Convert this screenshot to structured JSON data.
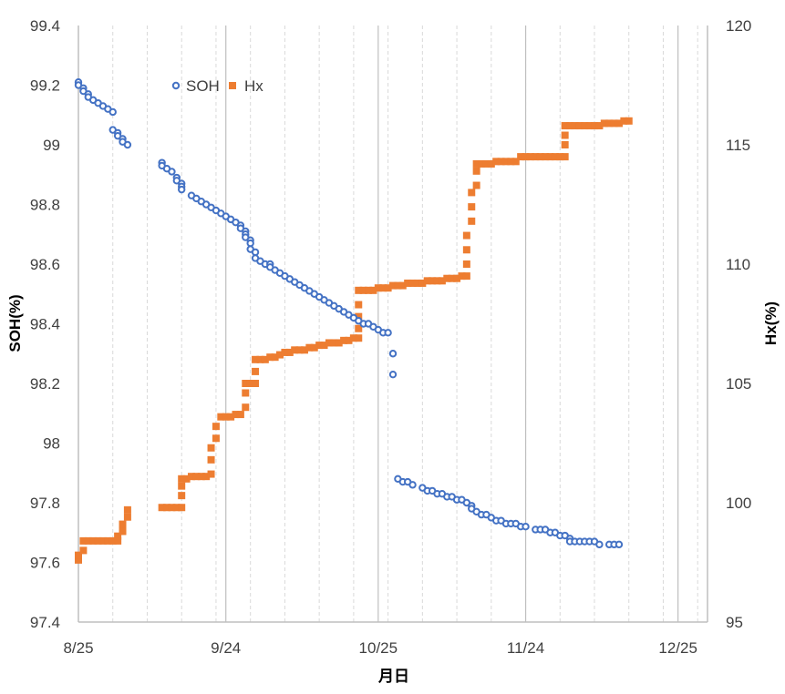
{
  "chart_data": {
    "type": "scatter",
    "x_axis": {
      "label": "月日",
      "ticks": [
        "8/25",
        "9/24",
        "10/25",
        "11/24",
        "12/25"
      ],
      "tick_dates": [
        "2023-08-25",
        "2023-09-24",
        "2023-10-25",
        "2023-11-24",
        "2023-12-25"
      ],
      "range": [
        "2023-08-25",
        "2023-12-31"
      ],
      "gridlines": "major solid, minor dashed weekly"
    },
    "y_axis_left": {
      "label": "SOH(%)",
      "ylim": [
        97.4,
        99.4
      ],
      "ticks": [
        "97.4",
        "97.6",
        "97.8",
        "98",
        "98.2",
        "98.4",
        "98.6",
        "98.8",
        "99",
        "99.2",
        "99.4"
      ]
    },
    "y_axis_right": {
      "label": "Hx(%)",
      "ylim": [
        95,
        120
      ],
      "ticks": [
        "95",
        "100",
        "105",
        "110",
        "115",
        "120"
      ]
    },
    "legend": {
      "position": "top-left",
      "entries": [
        "SOH",
        "Hx"
      ]
    },
    "series": [
      {
        "name": "SOH",
        "axis": "left",
        "marker": "hollow-circle",
        "color": "#4472C4",
        "points": [
          [
            "2023-08-25",
            99.21
          ],
          [
            "2023-08-25",
            99.2
          ],
          [
            "2023-08-26",
            99.19
          ],
          [
            "2023-08-26",
            99.18
          ],
          [
            "2023-08-27",
            99.17
          ],
          [
            "2023-08-27",
            99.16
          ],
          [
            "2023-08-28",
            99.15
          ],
          [
            "2023-08-29",
            99.14
          ],
          [
            "2023-08-30",
            99.13
          ],
          [
            "2023-08-31",
            99.12
          ],
          [
            "2023-09-01",
            99.11
          ],
          [
            "2023-09-01",
            99.05
          ],
          [
            "2023-09-02",
            99.04
          ],
          [
            "2023-09-02",
            99.03
          ],
          [
            "2023-09-03",
            99.02
          ],
          [
            "2023-09-03",
            99.01
          ],
          [
            "2023-09-04",
            99.0
          ],
          [
            "2023-09-11",
            98.94
          ],
          [
            "2023-09-11",
            98.93
          ],
          [
            "2023-09-12",
            98.92
          ],
          [
            "2023-09-13",
            98.91
          ],
          [
            "2023-09-14",
            98.89
          ],
          [
            "2023-09-14",
            98.88
          ],
          [
            "2023-09-15",
            98.87
          ],
          [
            "2023-09-15",
            98.86
          ],
          [
            "2023-09-15",
            98.85
          ],
          [
            "2023-09-17",
            98.83
          ],
          [
            "2023-09-18",
            98.82
          ],
          [
            "2023-09-19",
            98.81
          ],
          [
            "2023-09-20",
            98.8
          ],
          [
            "2023-09-21",
            98.79
          ],
          [
            "2023-09-22",
            98.78
          ],
          [
            "2023-09-23",
            98.77
          ],
          [
            "2023-09-24",
            98.76
          ],
          [
            "2023-09-25",
            98.75
          ],
          [
            "2023-09-26",
            98.74
          ],
          [
            "2023-09-27",
            98.73
          ],
          [
            "2023-09-27",
            98.72
          ],
          [
            "2023-09-28",
            98.71
          ],
          [
            "2023-09-28",
            98.7
          ],
          [
            "2023-09-28",
            98.69
          ],
          [
            "2023-09-29",
            98.68
          ],
          [
            "2023-09-29",
            98.67
          ],
          [
            "2023-09-29",
            98.65
          ],
          [
            "2023-09-30",
            98.64
          ],
          [
            "2023-09-30",
            98.62
          ],
          [
            "2023-10-01",
            98.61
          ],
          [
            "2023-10-02",
            98.6
          ],
          [
            "2023-10-03",
            98.6
          ],
          [
            "2023-10-03",
            98.59
          ],
          [
            "2023-10-04",
            98.58
          ],
          [
            "2023-10-05",
            98.57
          ],
          [
            "2023-10-06",
            98.56
          ],
          [
            "2023-10-07",
            98.55
          ],
          [
            "2023-10-08",
            98.54
          ],
          [
            "2023-10-09",
            98.53
          ],
          [
            "2023-10-10",
            98.52
          ],
          [
            "2023-10-11",
            98.51
          ],
          [
            "2023-10-12",
            98.5
          ],
          [
            "2023-10-13",
            98.49
          ],
          [
            "2023-10-14",
            98.48
          ],
          [
            "2023-10-15",
            98.47
          ],
          [
            "2023-10-16",
            98.46
          ],
          [
            "2023-10-17",
            98.45
          ],
          [
            "2023-10-18",
            98.44
          ],
          [
            "2023-10-19",
            98.43
          ],
          [
            "2023-10-20",
            98.42
          ],
          [
            "2023-10-21",
            98.41
          ],
          [
            "2023-10-22",
            98.4
          ],
          [
            "2023-10-23",
            98.4
          ],
          [
            "2023-10-24",
            98.39
          ],
          [
            "2023-10-25",
            98.38
          ],
          [
            "2023-10-26",
            98.37
          ],
          [
            "2023-10-27",
            98.37
          ],
          [
            "2023-10-28",
            98.3
          ],
          [
            "2023-10-28",
            98.23
          ],
          [
            "2023-10-29",
            97.88
          ],
          [
            "2023-10-30",
            97.87
          ],
          [
            "2023-10-31",
            97.87
          ],
          [
            "2023-11-01",
            97.86
          ],
          [
            "2023-11-03",
            97.85
          ],
          [
            "2023-11-04",
            97.84
          ],
          [
            "2023-11-05",
            97.84
          ],
          [
            "2023-11-06",
            97.83
          ],
          [
            "2023-11-07",
            97.83
          ],
          [
            "2023-11-08",
            97.82
          ],
          [
            "2023-11-09",
            97.82
          ],
          [
            "2023-11-10",
            97.81
          ],
          [
            "2023-11-11",
            97.81
          ],
          [
            "2023-11-12",
            97.8
          ],
          [
            "2023-11-13",
            97.79
          ],
          [
            "2023-11-13",
            97.78
          ],
          [
            "2023-11-14",
            97.77
          ],
          [
            "2023-11-15",
            97.76
          ],
          [
            "2023-11-16",
            97.76
          ],
          [
            "2023-11-17",
            97.75
          ],
          [
            "2023-11-18",
            97.74
          ],
          [
            "2023-11-19",
            97.74
          ],
          [
            "2023-11-20",
            97.73
          ],
          [
            "2023-11-21",
            97.73
          ],
          [
            "2023-11-22",
            97.73
          ],
          [
            "2023-11-23",
            97.72
          ],
          [
            "2023-11-24",
            97.72
          ],
          [
            "2023-11-26",
            97.71
          ],
          [
            "2023-11-27",
            97.71
          ],
          [
            "2023-11-28",
            97.71
          ],
          [
            "2023-11-29",
            97.7
          ],
          [
            "2023-11-30",
            97.7
          ],
          [
            "2023-12-01",
            97.69
          ],
          [
            "2023-12-02",
            97.69
          ],
          [
            "2023-12-03",
            97.68
          ],
          [
            "2023-12-03",
            97.67
          ],
          [
            "2023-12-04",
            97.67
          ],
          [
            "2023-12-05",
            97.67
          ],
          [
            "2023-12-06",
            97.67
          ],
          [
            "2023-12-07",
            97.67
          ],
          [
            "2023-12-08",
            97.67
          ],
          [
            "2023-12-09",
            97.66
          ],
          [
            "2023-12-11",
            97.66
          ],
          [
            "2023-12-12",
            97.66
          ],
          [
            "2023-12-13",
            97.66
          ]
        ]
      },
      {
        "name": "Hx",
        "axis": "right",
        "marker": "filled-square",
        "color": "#ED7D31",
        "points": [
          [
            "2023-08-25",
            97.6
          ],
          [
            "2023-08-25",
            97.8
          ],
          [
            "2023-08-26",
            98.0
          ],
          [
            "2023-08-26",
            98.4
          ],
          [
            "2023-08-27",
            98.4
          ],
          [
            "2023-08-28",
            98.4
          ],
          [
            "2023-08-29",
            98.4
          ],
          [
            "2023-08-30",
            98.4
          ],
          [
            "2023-08-31",
            98.4
          ],
          [
            "2023-09-01",
            98.4
          ],
          [
            "2023-09-02",
            98.4
          ],
          [
            "2023-09-02",
            98.6
          ],
          [
            "2023-09-03",
            98.8
          ],
          [
            "2023-09-03",
            99.1
          ],
          [
            "2023-09-04",
            99.4
          ],
          [
            "2023-09-04",
            99.7
          ],
          [
            "2023-09-11",
            99.8
          ],
          [
            "2023-09-12",
            99.8
          ],
          [
            "2023-09-13",
            99.8
          ],
          [
            "2023-09-14",
            99.8
          ],
          [
            "2023-09-15",
            99.8
          ],
          [
            "2023-09-15",
            100.3
          ],
          [
            "2023-09-15",
            100.7
          ],
          [
            "2023-09-15",
            101.0
          ],
          [
            "2023-09-16",
            101.0
          ],
          [
            "2023-09-17",
            101.1
          ],
          [
            "2023-09-18",
            101.1
          ],
          [
            "2023-09-19",
            101.1
          ],
          [
            "2023-09-20",
            101.1
          ],
          [
            "2023-09-21",
            101.2
          ],
          [
            "2023-09-21",
            101.8
          ],
          [
            "2023-09-21",
            102.3
          ],
          [
            "2023-09-22",
            102.7
          ],
          [
            "2023-09-22",
            103.2
          ],
          [
            "2023-09-23",
            103.6
          ],
          [
            "2023-09-24",
            103.6
          ],
          [
            "2023-09-25",
            103.6
          ],
          [
            "2023-09-26",
            103.7
          ],
          [
            "2023-09-27",
            103.7
          ],
          [
            "2023-09-28",
            104.0
          ],
          [
            "2023-09-28",
            104.6
          ],
          [
            "2023-09-28",
            105.0
          ],
          [
            "2023-09-29",
            105.0
          ],
          [
            "2023-09-30",
            105.0
          ],
          [
            "2023-09-30",
            105.5
          ],
          [
            "2023-09-30",
            106.0
          ],
          [
            "2023-10-01",
            106.0
          ],
          [
            "2023-10-02",
            106.0
          ],
          [
            "2023-10-03",
            106.1
          ],
          [
            "2023-10-04",
            106.1
          ],
          [
            "2023-10-05",
            106.2
          ],
          [
            "2023-10-06",
            106.3
          ],
          [
            "2023-10-07",
            106.3
          ],
          [
            "2023-10-08",
            106.4
          ],
          [
            "2023-10-09",
            106.4
          ],
          [
            "2023-10-10",
            106.4
          ],
          [
            "2023-10-11",
            106.5
          ],
          [
            "2023-10-12",
            106.5
          ],
          [
            "2023-10-13",
            106.6
          ],
          [
            "2023-10-14",
            106.6
          ],
          [
            "2023-10-15",
            106.7
          ],
          [
            "2023-10-16",
            106.7
          ],
          [
            "2023-10-17",
            106.7
          ],
          [
            "2023-10-18",
            106.8
          ],
          [
            "2023-10-19",
            106.8
          ],
          [
            "2023-10-20",
            106.9
          ],
          [
            "2023-10-21",
            106.9
          ],
          [
            "2023-10-21",
            107.3
          ],
          [
            "2023-10-21",
            107.8
          ],
          [
            "2023-10-21",
            108.3
          ],
          [
            "2023-10-21",
            108.9
          ],
          [
            "2023-10-22",
            108.9
          ],
          [
            "2023-10-23",
            108.9
          ],
          [
            "2023-10-24",
            108.9
          ],
          [
            "2023-10-25",
            109.0
          ],
          [
            "2023-10-26",
            109.0
          ],
          [
            "2023-10-27",
            109.0
          ],
          [
            "2023-10-28",
            109.1
          ],
          [
            "2023-10-29",
            109.1
          ],
          [
            "2023-10-30",
            109.1
          ],
          [
            "2023-10-31",
            109.2
          ],
          [
            "2023-11-01",
            109.2
          ],
          [
            "2023-11-02",
            109.2
          ],
          [
            "2023-11-03",
            109.2
          ],
          [
            "2023-11-04",
            109.3
          ],
          [
            "2023-11-05",
            109.3
          ],
          [
            "2023-11-06",
            109.3
          ],
          [
            "2023-11-07",
            109.3
          ],
          [
            "2023-11-08",
            109.4
          ],
          [
            "2023-11-09",
            109.4
          ],
          [
            "2023-11-10",
            109.4
          ],
          [
            "2023-11-11",
            109.5
          ],
          [
            "2023-11-12",
            109.5
          ],
          [
            "2023-11-12",
            110.0
          ],
          [
            "2023-11-12",
            110.6
          ],
          [
            "2023-11-12",
            111.2
          ],
          [
            "2023-11-13",
            111.8
          ],
          [
            "2023-11-13",
            112.4
          ],
          [
            "2023-11-13",
            113.0
          ],
          [
            "2023-11-14",
            113.3
          ],
          [
            "2023-11-14",
            113.9
          ],
          [
            "2023-11-14",
            114.2
          ],
          [
            "2023-11-15",
            114.2
          ],
          [
            "2023-11-16",
            114.2
          ],
          [
            "2023-11-17",
            114.2
          ],
          [
            "2023-11-18",
            114.3
          ],
          [
            "2023-11-19",
            114.3
          ],
          [
            "2023-11-20",
            114.3
          ],
          [
            "2023-11-21",
            114.3
          ],
          [
            "2023-11-22",
            114.3
          ],
          [
            "2023-11-23",
            114.5
          ],
          [
            "2023-11-24",
            114.5
          ],
          [
            "2023-11-25",
            114.5
          ],
          [
            "2023-11-26",
            114.5
          ],
          [
            "2023-11-27",
            114.5
          ],
          [
            "2023-11-28",
            114.5
          ],
          [
            "2023-11-29",
            114.5
          ],
          [
            "2023-11-30",
            114.5
          ],
          [
            "2023-12-01",
            114.5
          ],
          [
            "2023-12-02",
            114.5
          ],
          [
            "2023-12-02",
            115.0
          ],
          [
            "2023-12-02",
            115.4
          ],
          [
            "2023-12-02",
            115.8
          ],
          [
            "2023-12-03",
            115.8
          ],
          [
            "2023-12-04",
            115.8
          ],
          [
            "2023-12-05",
            115.8
          ],
          [
            "2023-12-06",
            115.8
          ],
          [
            "2023-12-07",
            115.8
          ],
          [
            "2023-12-08",
            115.8
          ],
          [
            "2023-12-09",
            115.8
          ],
          [
            "2023-12-10",
            115.9
          ],
          [
            "2023-12-11",
            115.9
          ],
          [
            "2023-12-12",
            115.9
          ],
          [
            "2023-12-13",
            115.9
          ],
          [
            "2023-12-14",
            116.0
          ],
          [
            "2023-12-15",
            116.0
          ]
        ]
      }
    ]
  }
}
